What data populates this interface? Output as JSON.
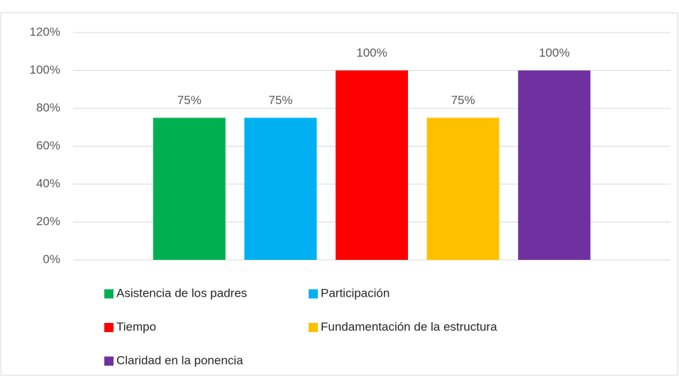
{
  "chart_data": {
    "type": "bar",
    "categories": [
      null
    ],
    "series": [
      {
        "name": "Asistencia de los padres",
        "color": "#00b050",
        "values": [
          75
        ],
        "value_labels": [
          "75%"
        ]
      },
      {
        "name": "Participación",
        "color": "#00b0f0",
        "values": [
          75
        ],
        "value_labels": [
          "75%"
        ]
      },
      {
        "name": "Tiempo",
        "color": "#ff0000",
        "values": [
          100
        ],
        "value_labels": [
          "100%"
        ]
      },
      {
        "name": "Fundamentación de la estructura",
        "color": "#ffc000",
        "values": [
          75
        ],
        "value_labels": [
          "75%"
        ]
      },
      {
        "name": "Claridad en la ponencia",
        "color": "#7030a0",
        "values": [
          100
        ],
        "value_labels": [
          "100%"
        ]
      }
    ],
    "ylim": [
      0,
      120
    ],
    "yticks": [
      {
        "value": 0,
        "label": "0%"
      },
      {
        "value": 20,
        "label": "20%"
      },
      {
        "value": 40,
        "label": "40%"
      },
      {
        "value": 60,
        "label": "60%"
      },
      {
        "value": 80,
        "label": "80%"
      },
      {
        "value": 100,
        "label": "100%"
      },
      {
        "value": 120,
        "label": "120%"
      }
    ],
    "grid": true,
    "legend": "bottom"
  }
}
